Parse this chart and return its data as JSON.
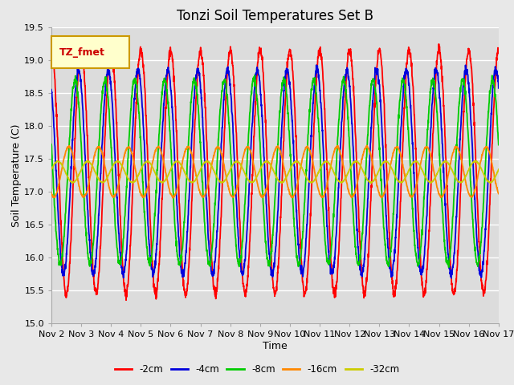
{
  "title": "Tonzi Soil Temperatures Set B",
  "xlabel": "Time",
  "ylabel": "Soil Temperature (C)",
  "ylim": [
    15.0,
    19.5
  ],
  "xlim_days": 15,
  "x_tick_labels": [
    "Nov 2",
    "Nov 3",
    "Nov 4",
    "Nov 5",
    "Nov 6",
    "Nov 7",
    "Nov 8",
    "Nov 9",
    "Nov 10",
    "Nov 11",
    "Nov 12",
    "Nov 13",
    "Nov 14",
    "Nov 15",
    "Nov 16",
    "Nov 17"
  ],
  "legend_label": "TZ_fmet",
  "legend_box_color": "#ffffcc",
  "legend_box_edge": "#cc9900",
  "series_labels": [
    "-2cm",
    "-4cm",
    "-8cm",
    "-16cm",
    "-32cm"
  ],
  "series_colors": [
    "#ff0000",
    "#0000dd",
    "#00cc00",
    "#ff8800",
    "#cccc00"
  ],
  "background_color": "#e8e8e8",
  "plot_bg_color": "#dcdcdc",
  "grid_color": "#ffffff",
  "title_fontsize": 12,
  "axis_fontsize": 9,
  "tick_fontsize": 8,
  "n_points": 2000,
  "base_temp": 17.3,
  "amplitudes": [
    1.85,
    1.55,
    1.4,
    0.38,
    0.16
  ],
  "phase_shifts_rad": [
    1.57,
    2.15,
    2.85,
    4.2,
    6.5
  ],
  "period_hours": 24,
  "trend": 0.0
}
